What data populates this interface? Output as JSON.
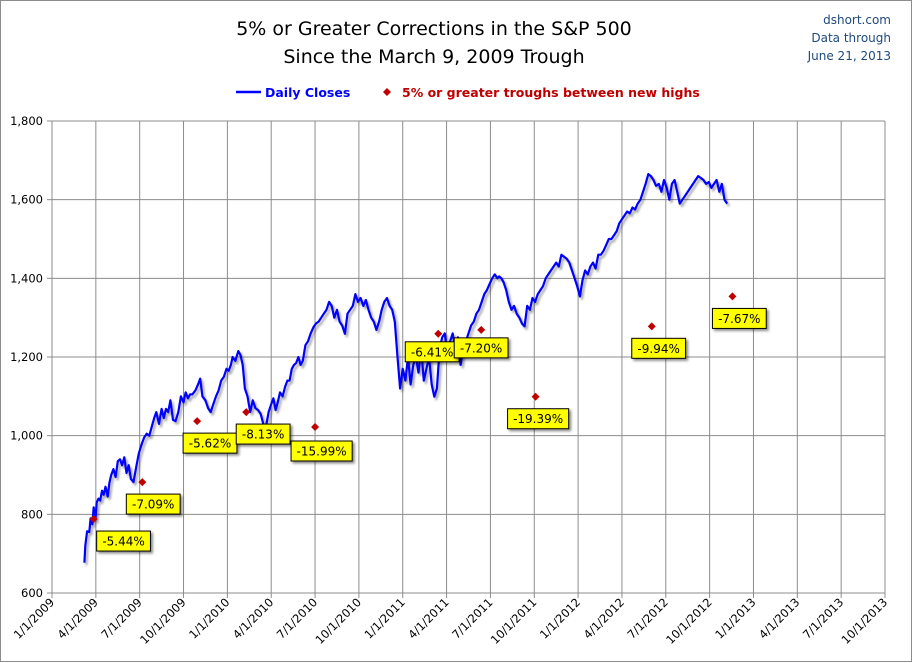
{
  "chart_data": {
    "type": "line",
    "title": [
      "5% or Greater Corrections in the S&P 500",
      "Since the March 9, 2009 Trough"
    ],
    "source_note": [
      "dshort.com",
      "Data through",
      "June 21, 2013"
    ],
    "xlabel": "",
    "ylabel": "",
    "ylim": [
      600,
      1800
    ],
    "y_ticks": [
      600,
      800,
      1000,
      1200,
      1400,
      1600,
      1800
    ],
    "y_tick_labels": [
      "600",
      "800",
      "1,000",
      "1,200",
      "1,400",
      "1,600",
      "1,800"
    ],
    "x_tick_labels": [
      "1/1/2009",
      "4/1/2009",
      "7/1/2009",
      "10/1/2009",
      "1/1/2010",
      "4/1/2010",
      "7/1/2010",
      "10/1/2010",
      "1/1/2011",
      "4/1/2011",
      "7/1/2011",
      "10/1/2011",
      "1/1/2012",
      "4/1/2012",
      "7/1/2012",
      "10/1/2012",
      "1/1/2013",
      "4/1/2013",
      "7/1/2013",
      "10/1/2013"
    ],
    "grid": true,
    "legend": {
      "placement": "top",
      "entries": [
        {
          "name": "Daily Closes",
          "type": "line",
          "color": "#0000ff"
        },
        {
          "name": "5% or greater troughs between new highs",
          "type": "marker",
          "color": "#c00000"
        }
      ]
    },
    "series": [
      {
        "name": "Daily Closes",
        "color": "#0000ff",
        "x_quarters_since_2009": [
          0.74,
          0.76,
          0.8,
          0.85,
          0.88,
          0.92,
          0.95,
          0.99,
          1.02,
          1.06,
          1.1,
          1.14,
          1.18,
          1.22,
          1.27,
          1.31,
          1.35,
          1.4,
          1.45,
          1.5,
          1.55,
          1.6,
          1.65,
          1.7,
          1.75,
          1.8,
          1.86,
          1.92,
          1.98,
          2.05,
          2.1,
          2.16,
          2.22,
          2.28,
          2.33,
          2.38,
          2.44,
          2.5,
          2.55,
          2.6,
          2.65,
          2.7,
          2.76,
          2.82,
          2.88,
          2.94,
          3.0,
          3.05,
          3.1,
          3.15,
          3.2,
          3.27,
          3.33,
          3.38,
          3.43,
          3.5,
          3.56,
          3.62,
          3.68,
          3.74,
          3.8,
          3.86,
          3.92,
          3.98,
          4.03,
          4.08,
          4.12,
          4.18,
          4.25,
          4.3,
          4.35,
          4.4,
          4.46,
          4.52,
          4.58,
          4.64,
          4.7,
          4.76,
          4.82,
          4.88,
          4.94,
          5.0,
          5.05,
          5.1,
          5.15,
          5.2,
          5.26,
          5.32,
          5.37,
          5.42,
          5.47,
          5.52,
          5.57,
          5.62,
          5.67,
          5.72,
          5.78,
          5.84,
          5.9,
          5.96,
          6.02,
          6.08,
          6.14,
          6.2,
          6.26,
          6.32,
          6.38,
          6.44,
          6.5,
          6.56,
          6.62,
          6.68,
          6.74,
          6.8,
          6.86,
          6.92,
          6.98,
          7.04,
          7.1,
          7.16,
          7.22,
          7.28,
          7.34,
          7.4,
          7.46,
          7.52,
          7.58,
          7.64,
          7.7,
          7.76,
          7.82,
          7.88,
          7.94,
          8.0,
          8.06,
          8.12,
          8.18,
          8.24,
          8.3,
          8.36,
          8.42,
          8.48,
          8.54,
          8.6,
          8.66,
          8.72,
          8.78,
          8.84,
          8.9,
          8.96,
          9.02,
          9.08,
          9.14,
          9.2,
          9.26,
          9.32,
          9.38,
          9.44,
          9.5,
          9.56,
          9.62,
          9.68,
          9.74,
          9.8,
          9.86,
          9.92,
          9.98,
          10.04,
          10.1,
          10.16,
          10.2,
          10.25,
          10.3,
          10.36,
          10.42,
          10.48,
          10.54,
          10.6,
          10.66,
          10.72,
          10.78,
          10.84,
          10.9,
          10.96,
          11.02,
          11.08,
          11.14,
          11.2,
          11.26,
          11.32,
          11.38,
          11.44,
          11.5,
          11.56,
          11.62,
          11.68,
          11.74,
          11.8,
          11.86,
          11.92,
          11.98,
          12.04,
          12.1,
          12.16,
          12.22,
          12.28,
          12.34,
          12.4,
          12.46,
          12.52,
          12.58,
          12.64,
          12.7,
          12.76,
          12.82,
          12.88,
          12.94,
          13.0,
          13.06,
          13.12,
          13.18,
          13.24,
          13.3,
          13.36,
          13.42,
          13.48,
          13.54,
          13.6,
          13.66,
          13.72,
          13.78,
          13.84,
          13.9,
          13.96,
          14.02,
          14.08,
          14.14,
          14.2,
          14.26,
          14.32,
          14.38,
          14.44,
          14.5,
          14.56,
          14.62,
          14.68,
          14.74,
          14.8,
          14.86,
          14.92,
          14.98,
          15.04,
          15.1,
          15.16,
          15.22,
          15.28,
          15.34,
          15.4,
          15.46,
          15.52,
          15.58,
          15.64,
          15.7,
          15.76,
          15.82,
          15.88,
          15.94,
          16.0,
          16.06,
          16.12,
          16.18,
          16.24,
          16.3,
          16.36,
          16.42,
          16.48,
          16.54,
          16.6,
          16.66,
          16.72,
          16.78,
          16.84,
          16.9,
          16.96,
          17.02,
          17.08,
          17.14,
          17.2,
          17.26,
          17.32,
          17.38,
          17.44,
          17.5,
          17.56,
          17.62,
          17.68,
          17.74,
          17.8,
          17.86,
          17.92,
          17.98,
          18.04,
          18.1,
          18.14
        ],
        "values": [
          677,
          720,
          757,
          755,
          790,
          775,
          818,
          785,
          830,
          840,
          835,
          860,
          850,
          870,
          845,
          880,
          900,
          915,
          895,
          935,
          940,
          925,
          945,
          905,
          925,
          890,
          882,
          920,
          955,
          980,
          995,
          1005,
          1000,
          1025,
          1045,
          1060,
          1030,
          1068,
          1045,
          1068,
          1060,
          1090,
          1040,
          1037,
          1060,
          1100,
          1085,
          1110,
          1095,
          1105,
          1105,
          1115,
          1130,
          1145,
          1100,
          1090,
          1070,
          1060,
          1080,
          1100,
          1115,
          1140,
          1150,
          1170,
          1165,
          1180,
          1200,
          1190,
          1215,
          1205,
          1180,
          1120,
          1100,
          1060,
          1090,
          1070,
          1065,
          1055,
          1030,
          1022,
          1060,
          1080,
          1095,
          1065,
          1085,
          1110,
          1100,
          1125,
          1140,
          1140,
          1170,
          1180,
          1185,
          1200,
          1180,
          1190,
          1230,
          1240,
          1260,
          1275,
          1285,
          1290,
          1300,
          1310,
          1320,
          1340,
          1330,
          1300,
          1320,
          1290,
          1280,
          1259,
          1310,
          1320,
          1330,
          1360,
          1340,
          1350,
          1330,
          1345,
          1320,
          1300,
          1290,
          1269,
          1290,
          1320,
          1340,
          1350,
          1330,
          1320,
          1290,
          1200,
          1120,
          1170,
          1140,
          1200,
          1130,
          1180,
          1200,
          1160,
          1220,
          1140,
          1170,
          1200,
          1130,
          1099,
          1120,
          1220,
          1250,
          1260,
          1200,
          1240,
          1260,
          1220,
          1250,
          1180,
          1220,
          1240,
          1260,
          1280,
          1290,
          1310,
          1320,
          1340,
          1360,
          1370,
          1385,
          1400,
          1410,
          1400,
          1405,
          1400,
          1390,
          1370,
          1340,
          1320,
          1330,
          1310,
          1300,
          1285,
          1278,
          1330,
          1320,
          1350,
          1340,
          1360,
          1370,
          1380,
          1400,
          1410,
          1420,
          1430,
          1440,
          1430,
          1460,
          1455,
          1450,
          1440,
          1420,
          1400,
          1380,
          1354,
          1395,
          1420,
          1410,
          1430,
          1440,
          1425,
          1460,
          1460,
          1470,
          1485,
          1500,
          1500,
          1510,
          1520,
          1540,
          1550,
          1560,
          1570,
          1565,
          1580,
          1575,
          1590,
          1600,
          1620,
          1640,
          1665,
          1660,
          1650,
          1635,
          1640,
          1620,
          1650,
          1630,
          1600,
          1640,
          1650,
          1620,
          1590,
          1600,
          1610,
          1620,
          1630,
          1640,
          1650,
          1660,
          1655,
          1650,
          1640,
          1645,
          1630,
          1640,
          1650,
          1620,
          1640,
          1600,
          1590
        ]
      },
      {
        "name": "5% or greater troughs between new highs",
        "color": "#c00000",
        "type": "scatter",
        "points": [
          {
            "x_quarters_since_2009": 0.95,
            "value": 788,
            "label": "-5.44%"
          },
          {
            "x_quarters_since_2009": 2.06,
            "value": 882,
            "label": "-7.09%"
          },
          {
            "x_quarters_since_2009": 3.31,
            "value": 1037,
            "label": "-5.62%"
          },
          {
            "x_quarters_since_2009": 4.43,
            "value": 1060,
            "label": "-8.13%"
          },
          {
            "x_quarters_since_2009": 6.0,
            "value": 1022,
            "label": "-15.99%"
          },
          {
            "x_quarters_since_2009": 8.81,
            "value": 1259,
            "label": "-6.41%"
          },
          {
            "x_quarters_since_2009": 9.79,
            "value": 1269,
            "label": "-7.20%"
          },
          {
            "x_quarters_since_2009": 11.03,
            "value": 1099,
            "label": "-19.39%"
          },
          {
            "x_quarters_since_2009": 13.68,
            "value": 1278,
            "label": "-9.94%"
          },
          {
            "x_quarters_since_2009": 15.52,
            "value": 1354,
            "label": "-7.67%"
          }
        ]
      }
    ]
  }
}
